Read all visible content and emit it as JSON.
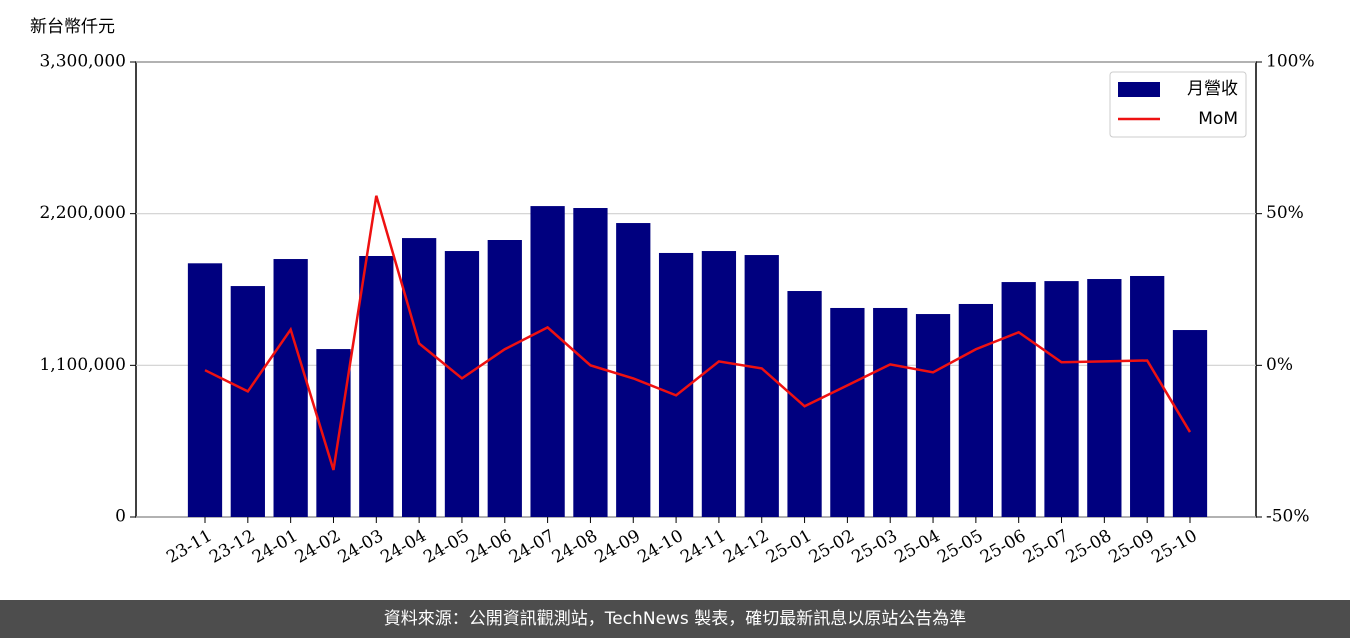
{
  "chart_data": {
    "type": "bar_line",
    "y_label": "新台幣仟元",
    "categories": [
      "23-11",
      "23-12",
      "24-01",
      "24-02",
      "24-03",
      "24-04",
      "24-05",
      "24-06",
      "24-07",
      "24-08",
      "24-09",
      "24-10",
      "24-11",
      "24-12",
      "25-01",
      "25-02",
      "25-03",
      "25-04",
      "25-05",
      "25-06",
      "25-07",
      "25-08",
      "25-09",
      "25-10"
    ],
    "series": [
      {
        "name": "月營收",
        "type": "bar",
        "color": "#00007f",
        "values": [
          1840000,
          1675000,
          1871000,
          1218000,
          1893000,
          2023000,
          1929000,
          2009000,
          2255000,
          2241000,
          2132000,
          1915000,
          1929000,
          1900000,
          1639000,
          1516000,
          1516000,
          1472000,
          1545000,
          1704000,
          1711000,
          1726000,
          1748000,
          1356000
        ]
      },
      {
        "name": "MoM",
        "type": "line",
        "axis": "y2",
        "color": "#ee1111",
        "values": [
          -1.6,
          -8.6,
          11.8,
          -34.5,
          55.9,
          7.2,
          -4.3,
          5.3,
          12.5,
          0,
          -4.3,
          -9.9,
          1.3,
          -1,
          -13.5,
          -6.6,
          0.3,
          -2.3,
          5.3,
          10.9,
          1,
          1.3,
          1.6,
          -22
        ]
      }
    ],
    "ylim": [
      0,
      3300000
    ],
    "yticks": [
      0,
      {
        "value": 1100000,
        "label": "1,100,000"
      },
      {
        "value": 2200000,
        "label": "2,200,000"
      },
      {
        "value": 3300000,
        "label": "3,300,000"
      }
    ],
    "y2lim": [
      -50,
      100
    ],
    "y2ticks": [
      {
        "value": -50,
        "label": "-50%"
      },
      {
        "value": 0,
        "label": "0%"
      },
      {
        "value": 50,
        "label": "50%"
      },
      {
        "value": 100,
        "label": "100%"
      }
    ],
    "grid": true,
    "legend": "upper right"
  },
  "footer": "資料來源：公開資訊觀測站，TechNews 製表，確切最新訊息以原站公告為準"
}
